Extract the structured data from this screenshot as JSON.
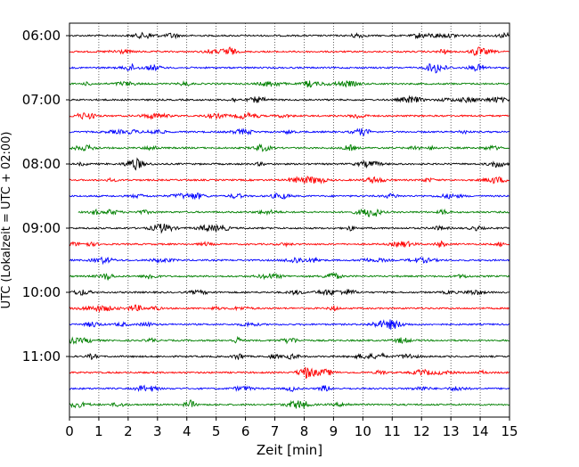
{
  "chart_data": {
    "type": "line",
    "title": "",
    "xlabel": "Zeit  [min]",
    "ylabel": "UTC (Lokalzeit = UTC + 02:00)",
    "xlim": [
      0,
      15
    ],
    "x_ticks": [
      "0",
      "1",
      "2",
      "3",
      "4",
      "5",
      "6",
      "7",
      "8",
      "9",
      "10",
      "11",
      "12",
      "13",
      "14",
      "15"
    ],
    "y_ticks": [
      "06:00",
      "07:00",
      "08:00",
      "09:00",
      "10:00",
      "11:00"
    ],
    "vertical_grid": true,
    "trace_interval_minutes": 15,
    "trace_colors": [
      "#000000",
      "#ff0000",
      "#0000ff",
      "#008000"
    ],
    "trace_start_times": [
      "06:00",
      "06:15",
      "06:30",
      "06:45",
      "07:00",
      "07:15",
      "07:30",
      "07:45",
      "08:00",
      "08:15",
      "08:30",
      "08:45",
      "09:00",
      "09:15",
      "09:30",
      "09:45",
      "10:00",
      "10:15",
      "10:30",
      "10:45",
      "11:00",
      "11:15",
      "11:30",
      "11:45"
    ],
    "trace_x_start": [
      0,
      0,
      0,
      0,
      0,
      0,
      0,
      0,
      0,
      0,
      0,
      0.3,
      0,
      0,
      0,
      0,
      0,
      0,
      0,
      0,
      0,
      0,
      0,
      0
    ]
  }
}
